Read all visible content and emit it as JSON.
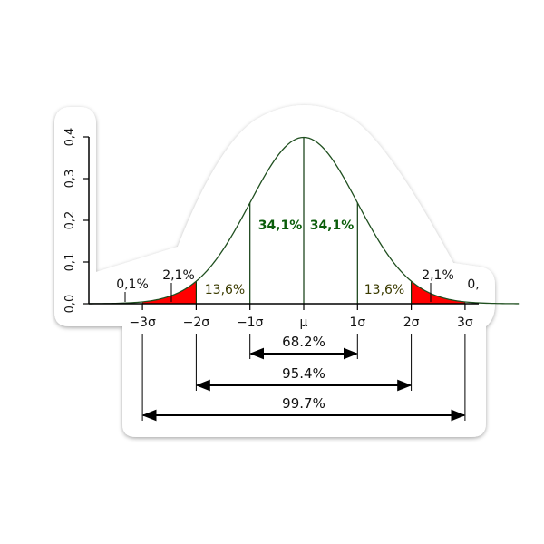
{
  "chart_data": {
    "type": "area",
    "title": "",
    "xlabel": "",
    "ylabel": "",
    "ylim": [
      0,
      0.4
    ],
    "xlim": [
      -4,
      4
    ],
    "y_ticks": [
      {
        "value": 0.0,
        "label": "0,0"
      },
      {
        "value": 0.1,
        "label": "0,1"
      },
      {
        "value": 0.2,
        "label": "0,2"
      },
      {
        "value": 0.3,
        "label": "0,3"
      },
      {
        "value": 0.4,
        "label": "0,4"
      }
    ],
    "x_ticks": [
      {
        "value": -3,
        "label": "−3σ"
      },
      {
        "value": -2,
        "label": "−2σ"
      },
      {
        "value": -1,
        "label": "−1σ"
      },
      {
        "value": 0,
        "label": "μ"
      },
      {
        "value": 1,
        "label": "1σ"
      },
      {
        "value": 2,
        "label": "2σ"
      },
      {
        "value": 3,
        "label": "3σ"
      }
    ],
    "curve": "standard normal density",
    "vertical_lines": [
      -2,
      -1,
      0,
      1,
      2
    ],
    "shaded_tails": [
      {
        "from": -3,
        "to": -2,
        "color": "#ff0000"
      },
      {
        "from": 2,
        "to": 3,
        "color": "#ff0000"
      }
    ],
    "segment_percentages": [
      {
        "label": "0,1%",
        "at": -3.5
      },
      {
        "label": "2,1%",
        "at": -2.5
      },
      {
        "label": "13,6%",
        "at": -1.5
      },
      {
        "label": "34,1%",
        "at": -0.5
      },
      {
        "label": "34,1%",
        "at": 0.5
      },
      {
        "label": "13,6%",
        "at": 1.5
      },
      {
        "label": "2,1%",
        "at": 2.5
      },
      {
        "label": "0,",
        "at": 3.5
      }
    ],
    "ranges": [
      {
        "from": -1,
        "to": 1,
        "label": "68.2%"
      },
      {
        "from": -2,
        "to": 2,
        "label": "95.4%"
      },
      {
        "from": -3,
        "to": 3,
        "label": "99.7%"
      }
    ],
    "grid": false,
    "colors": {
      "curve": "#1f4f1f",
      "tail_fill": "#ff0000",
      "green_text": "#0b5d0b",
      "olive_text": "#3b3b00"
    }
  }
}
